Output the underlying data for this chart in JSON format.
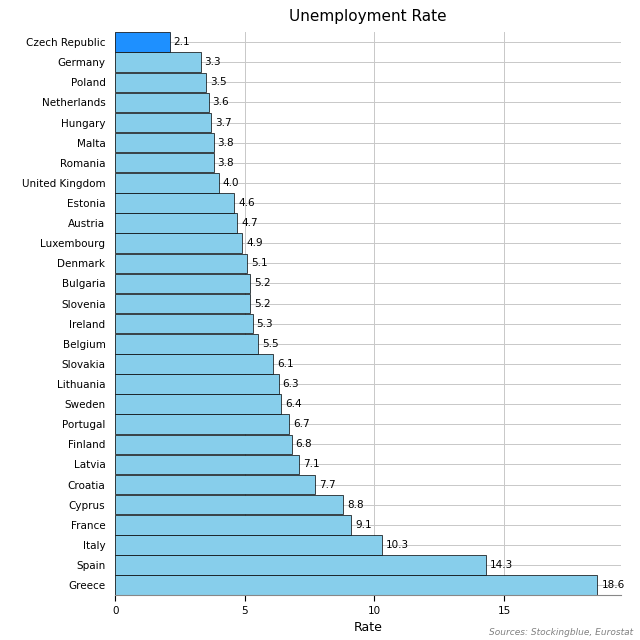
{
  "title": "Unemployment Rate",
  "xlabel": "Rate",
  "source_text": "Sources: Stockingblue, Eurostat",
  "countries": [
    "Czech Republic",
    "Germany",
    "Poland",
    "Netherlands",
    "Hungary",
    "Malta",
    "Romania",
    "United Kingdom",
    "Estonia",
    "Austria",
    "Luxembourg",
    "Denmark",
    "Bulgaria",
    "Slovenia",
    "Ireland",
    "Belgium",
    "Slovakia",
    "Lithuania",
    "Sweden",
    "Portugal",
    "Finland",
    "Latvia",
    "Croatia",
    "Cyprus",
    "France",
    "Italy",
    "Spain",
    "Greece"
  ],
  "values": [
    2.1,
    3.3,
    3.5,
    3.6,
    3.7,
    3.8,
    3.8,
    4.0,
    4.6,
    4.7,
    4.9,
    5.1,
    5.2,
    5.2,
    5.3,
    5.5,
    6.1,
    6.3,
    6.4,
    6.7,
    6.8,
    7.1,
    7.7,
    8.8,
    9.1,
    10.3,
    14.3,
    18.6
  ],
  "bar_color_default": "#87CEEB",
  "bar_color_first": "#1E90FF",
  "bar_edge_color": "#000000",
  "bg_color": "#ffffff",
  "grid_color": "#c8c8c8",
  "xlim": [
    0,
    19.5
  ],
  "xticks": [
    0,
    5,
    10,
    15
  ],
  "title_fontsize": 11,
  "label_fontsize": 7.5,
  "value_fontsize": 7.5,
  "xlabel_fontsize": 9,
  "source_fontsize": 6.5
}
